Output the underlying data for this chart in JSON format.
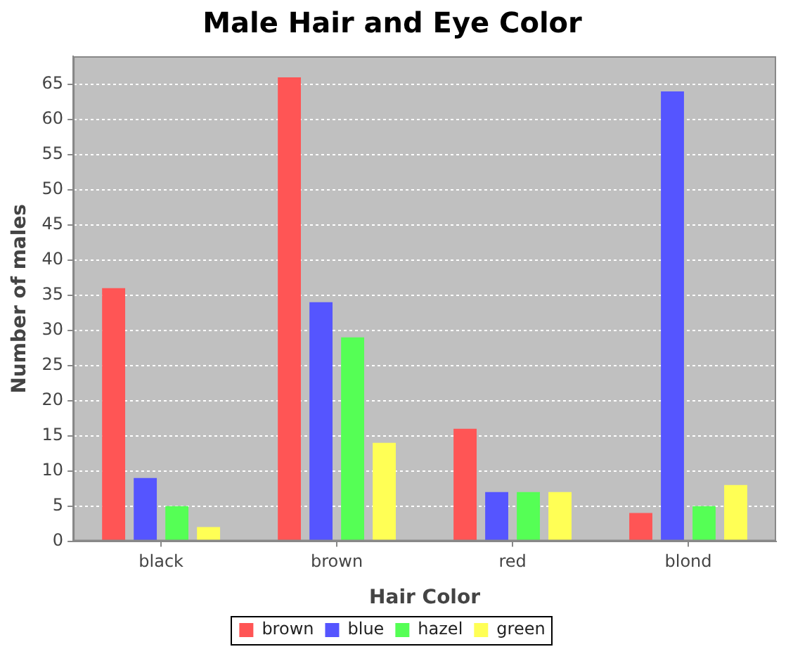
{
  "chart_data": {
    "type": "bar",
    "title": "Male Hair and Eye Color",
    "xlabel": "Hair Color",
    "ylabel": "Number of males",
    "categories": [
      "black",
      "brown",
      "red",
      "blond"
    ],
    "series": [
      {
        "name": "brown",
        "color": "#ff5555",
        "values": [
          36,
          66,
          16,
          4
        ]
      },
      {
        "name": "blue",
        "color": "#5555ff",
        "values": [
          9,
          34,
          7,
          64
        ]
      },
      {
        "name": "hazel",
        "color": "#55ff55",
        "values": [
          5,
          29,
          7,
          5
        ]
      },
      {
        "name": "green",
        "color": "#ffff55",
        "values": [
          2,
          14,
          7,
          8
        ]
      }
    ],
    "ylim": [
      0,
      69
    ],
    "yticks": [
      0,
      5,
      10,
      15,
      20,
      25,
      30,
      35,
      40,
      45,
      50,
      55,
      60,
      65
    ],
    "grid": "y",
    "legend": "bottom"
  }
}
